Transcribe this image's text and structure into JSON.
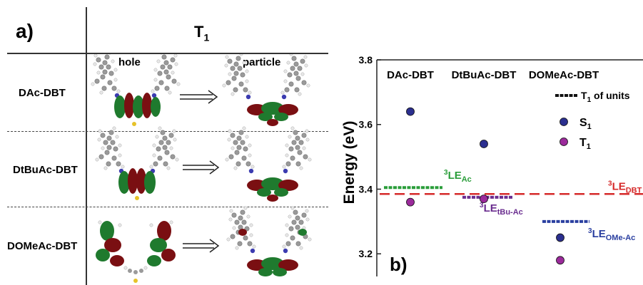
{
  "panel_a": {
    "label": "a)",
    "state": "T",
    "state_sub": "1",
    "col_hole": "hole",
    "col_particle": "particle",
    "rows": [
      {
        "name": "DAc-DBT"
      },
      {
        "name": "DtBuAc-DBT"
      },
      {
        "name": "DOMeAc-DBT"
      }
    ],
    "colors": {
      "lobe_red": "#7a0f12",
      "lobe_green": "#1f7a2e",
      "carbon": "#8a8a8a",
      "hydrogen": "#e6e6e6",
      "nitrogen": "#3b3bb0",
      "sulfur": "#e6c229"
    }
  },
  "panel_b": {
    "label": "b)",
    "ylabel": "Energy (eV)",
    "chart_data": {
      "type": "scatter",
      "ylim": [
        3.13,
        3.8
      ],
      "yticks": [
        "3.2",
        "3.4",
        "3.6",
        "3.8"
      ],
      "categories": [
        "DAc-DBT",
        "DtBuAc-DBT",
        "DOMeAc-DBT"
      ],
      "series": [
        {
          "name": "S",
          "sub": "1",
          "color": "#2b2f8f",
          "values": [
            3.64,
            3.54,
            3.25
          ]
        },
        {
          "name": "T",
          "sub": "1",
          "color": "#9b2a9b",
          "values": [
            3.36,
            3.37,
            3.18
          ]
        }
      ],
      "units": {
        "label": "T",
        "sub": "1",
        "suffix": " of units",
        "color": "#111111"
      },
      "levels": [
        {
          "sup": "3",
          "main": "LE",
          "sub": "Ac",
          "value": 3.405,
          "color": "#2a9d3a"
        },
        {
          "sup": "3",
          "main": "LE",
          "sub": "tBu-Ac",
          "value": 3.375,
          "color": "#6a2d8f"
        },
        {
          "sup": "3",
          "main": "LE",
          "sub": "OMe-Ac",
          "value": 3.3,
          "color": "#2a3fa0"
        }
      ],
      "reference": {
        "sup": "3",
        "main": "LE",
        "sub": "DBT",
        "value": 3.385,
        "color": "#d62a2a"
      }
    }
  }
}
